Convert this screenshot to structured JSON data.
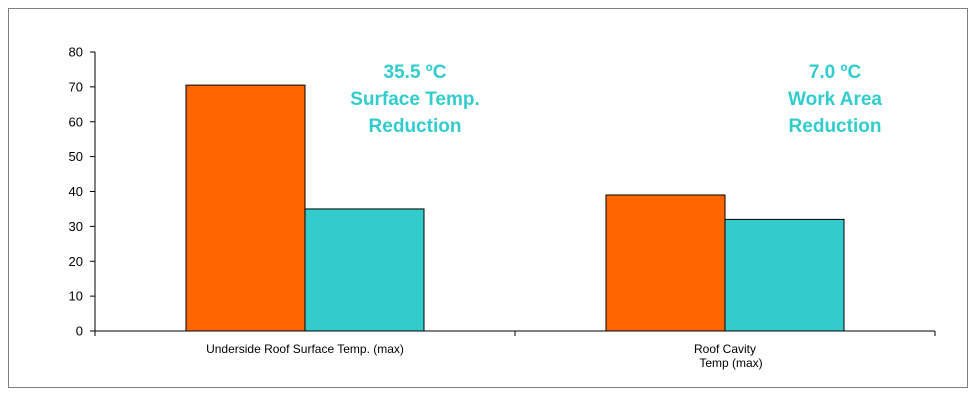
{
  "chart_data": {
    "type": "bar",
    "categories": [
      [
        "Underside Roof Surface Temp. (max)"
      ],
      [
        "Roof Cavity",
        "Temp (max)"
      ]
    ],
    "series": [
      {
        "values": [
          70.5,
          39
        ],
        "color": "#ff6600"
      },
      {
        "values": [
          35,
          32
        ],
        "color": "#33cccc"
      }
    ],
    "ylim": [
      0,
      80
    ],
    "yticks": [
      0,
      10,
      20,
      30,
      40,
      50,
      60,
      70,
      80
    ],
    "grid": false,
    "legend": "none",
    "annotations": [
      {
        "lines": [
          "35.5 ºC",
          "Surface Temp.",
          "Reduction"
        ],
        "category": 0,
        "color": "#33cccc"
      },
      {
        "lines": [
          "7.0 ºC",
          "Work Area",
          "Reduction"
        ],
        "category": 1,
        "color": "#33cccc"
      }
    ]
  }
}
